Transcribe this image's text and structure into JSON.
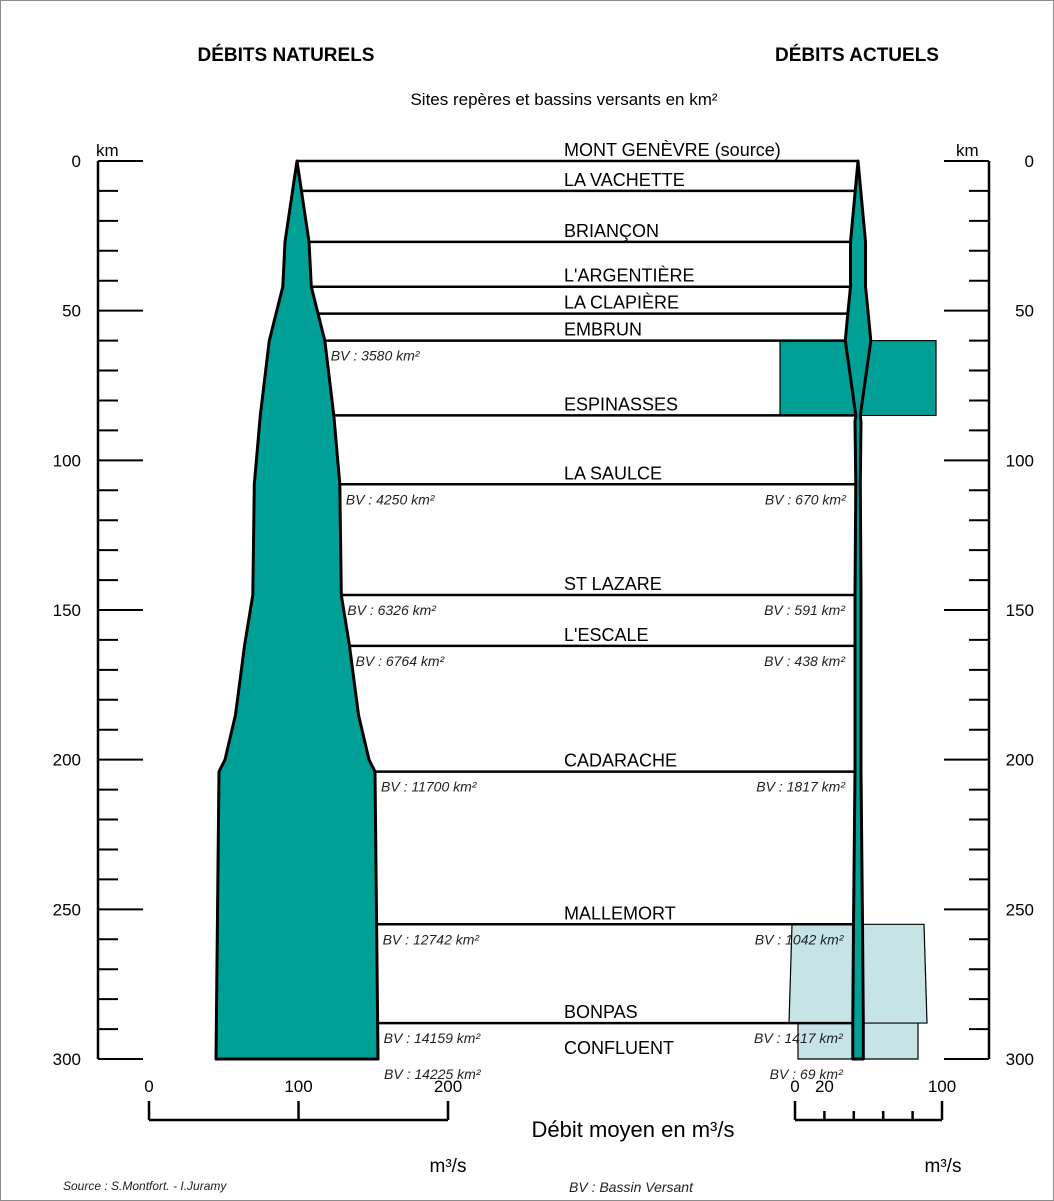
{
  "colors": {
    "flow_fill": "#00a096",
    "flow_stroke": "#000000",
    "canal_fill": "#c6e3e6",
    "line": "#000000"
  },
  "headers": {
    "left_title": "DÉBITS NATURELS",
    "right_title": "DÉBITS ACTUELS",
    "subtitle": "Sites repères et bassins versants en km²"
  },
  "chart_data": {
    "type": "area",
    "title": "",
    "km_axis": {
      "unit_label": "km",
      "ticks": [
        "0",
        "50",
        "100",
        "150",
        "200",
        "250",
        "300"
      ],
      "range": [
        0,
        300
      ],
      "minor_step": 10
    },
    "sites": [
      {
        "name": "MONT GENÈVRE (source)",
        "km": 0
      },
      {
        "name": "LA VACHETTE",
        "km": 10
      },
      {
        "name": "BRIANÇON",
        "km": 27
      },
      {
        "name": "L'ARGENTIÈRE",
        "km": 42
      },
      {
        "name": "LA CLAPIÈRE",
        "km": 51
      },
      {
        "name": "EMBRUN",
        "km": 60
      },
      {
        "name": "ESPINASSES",
        "km": 85
      },
      {
        "name": "LA SAULCE",
        "km": 108
      },
      {
        "name": "ST LAZARE",
        "km": 145
      },
      {
        "name": "L'ESCALE",
        "km": 162
      },
      {
        "name": "CADARACHE",
        "km": 204
      },
      {
        "name": "MALLEMORT",
        "km": 255
      },
      {
        "name": "BONPAS",
        "km": 288
      },
      {
        "name": "CONFLUENT",
        "km": 300
      }
    ],
    "basin_labels_natural": [
      {
        "km": 60,
        "text": "BV : 3580 km²"
      },
      {
        "km": 108,
        "text": "BV : 4250 km²"
      },
      {
        "km": 145,
        "text": "BV : 6326 km²"
      },
      {
        "km": 162,
        "text": "BV : 6764 km²"
      },
      {
        "km": 204,
        "text": "BV : 11700 km²"
      },
      {
        "km": 255,
        "text": "BV : 12742 km²"
      },
      {
        "km": 288,
        "text": "BV : 14159 km²"
      },
      {
        "km": 300,
        "text": "BV : 14225 km²"
      }
    ],
    "basin_labels_actual": [
      {
        "km": 108,
        "text": "BV : 670 km²"
      },
      {
        "km": 145,
        "text": "BV : 591 km²"
      },
      {
        "km": 162,
        "text": "BV : 438 km²"
      },
      {
        "km": 204,
        "text": "BV : 1817 km²"
      },
      {
        "km": 255,
        "text": "BV : 1042 km²"
      },
      {
        "km": 288,
        "text": "BV : 1417 km²"
      },
      {
        "km": 300,
        "text": "BV : 69 km²"
      }
    ],
    "series": [
      {
        "name": "DÉBITS NATURELS",
        "km": [
          0,
          27,
          42,
          60,
          85,
          108,
          145,
          162,
          185,
          200,
          204,
          300
        ],
        "flow": [
          0,
          16,
          19,
          37,
          49,
          57,
          59,
          70,
          82,
          96,
          104,
          108
        ]
      },
      {
        "name": "DÉBITS ACTUELS",
        "km": [
          0,
          27,
          42,
          52,
          60,
          85,
          87,
          108,
          145,
          162,
          204,
          255,
          288,
          300
        ],
        "flow": [
          0,
          10,
          10,
          14,
          17,
          3,
          4,
          3,
          4,
          4,
          4,
          6,
          7,
          7
        ]
      }
    ],
    "canal_profiles": [
      {
        "km_from": 60,
        "km_to": 85,
        "width": 52
      },
      {
        "km_from": 255,
        "km_to": 288,
        "width_top": 44,
        "width_bottom": 46
      },
      {
        "km_from": 288,
        "km_to": 300,
        "width": 40
      }
    ],
    "flow_scale_natural": {
      "ticks": [
        "0",
        "100",
        "200"
      ],
      "unit": "m³/s",
      "range": [
        0,
        200
      ]
    },
    "flow_scale_actual": {
      "ticks": [
        "0",
        "20",
        "100"
      ],
      "unit": "m³/s",
      "range": [
        0,
        100
      ]
    },
    "scale_title": "Débit moyen en m³/s"
  },
  "footer": {
    "source": "Source : S.Montfort. - I.Juramy",
    "legend": "BV : Bassin Versant"
  }
}
